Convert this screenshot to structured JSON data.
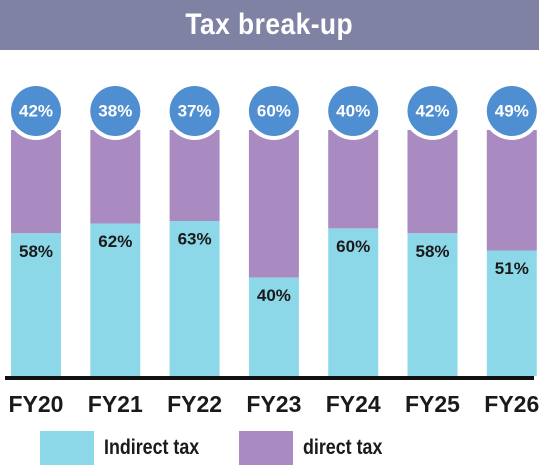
{
  "title": "Tax break-up",
  "chart_data": {
    "type": "bar",
    "stacked": true,
    "categories": [
      "FY20",
      "FY21",
      "FY22",
      "FY23",
      "FY24",
      "FY25",
      "FY26"
    ],
    "series": [
      {
        "name": "Indirect tax",
        "values": [
          58,
          62,
          63,
          40,
          60,
          58,
          51
        ],
        "labels": [
          "58%",
          "62%",
          "63%",
          "40%",
          "60%",
          "58%",
          "51%"
        ],
        "color": "#8cd8e8"
      },
      {
        "name": "direct tax",
        "values": [
          42,
          38,
          37,
          60,
          40,
          42,
          49
        ],
        "labels": [
          "42%",
          "38%",
          "37%",
          "60%",
          "40%",
          "42%",
          "49%"
        ],
        "color": "#a98bc2"
      }
    ],
    "ylim": [
      0,
      100
    ],
    "bubble_color": "#4f8ed0",
    "grid": false,
    "legend_position": "bottom"
  },
  "legend": [
    {
      "label": "Indirect tax",
      "color": "#8cd8e8"
    },
    {
      "label": "direct tax",
      "color": "#a98bc2"
    }
  ]
}
